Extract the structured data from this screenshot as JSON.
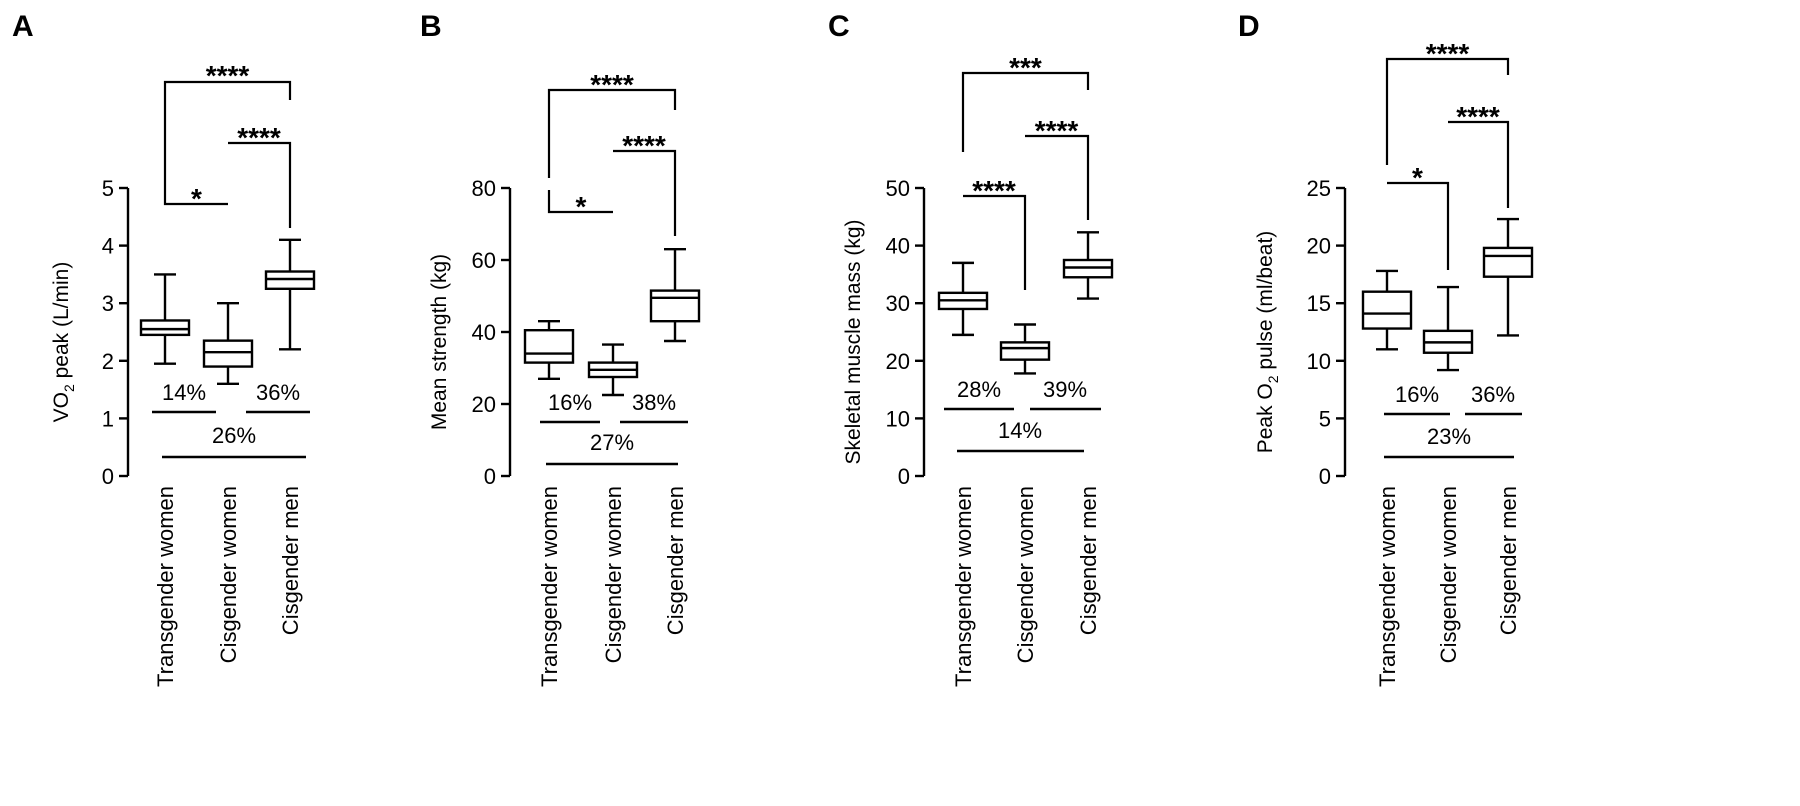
{
  "chart_data": [
    {
      "panel": "A",
      "type": "box",
      "ylabel": "VO",
      "ylabel_sub": "2",
      "ylabel_tail": " peak (L/min)",
      "ylim": [
        0,
        5
      ],
      "yticks": [
        0,
        1,
        2,
        3,
        4,
        5
      ],
      "categories": [
        "Transgender women",
        "Cisgender women",
        "Cisgender men"
      ],
      "boxes": [
        {
          "min": 1.95,
          "q1": 2.45,
          "median": 2.55,
          "q3": 2.7,
          "max": 3.5
        },
        {
          "min": 1.6,
          "q1": 1.9,
          "median": 2.15,
          "q3": 2.35,
          "max": 3.0
        },
        {
          "min": 2.2,
          "q1": 3.25,
          "median": 3.42,
          "q3": 3.55,
          "max": 4.1
        }
      ],
      "brackets": [
        {
          "from": 0,
          "to": 1,
          "label": "*"
        },
        {
          "from": 1,
          "to": 2,
          "label": "****"
        },
        {
          "from": 0,
          "to": 2,
          "label": "****"
        }
      ],
      "percent_lines": [
        {
          "label": "14%"
        },
        {
          "label": "36%"
        },
        {
          "label": "26%"
        }
      ]
    },
    {
      "panel": "B",
      "type": "box",
      "ylabel": "Mean strength (kg)",
      "ylabel_sub": "",
      "ylabel_tail": "",
      "ylim": [
        0,
        80
      ],
      "yticks": [
        0,
        20,
        40,
        60,
        80
      ],
      "categories": [
        "Transgender women",
        "Cisgender women",
        "Cisgender men"
      ],
      "boxes": [
        {
          "min": 27,
          "q1": 31.5,
          "median": 34,
          "q3": 40.5,
          "max": 43
        },
        {
          "min": 22.5,
          "q1": 27.5,
          "median": 29.5,
          "q3": 31.5,
          "max": 36.5
        },
        {
          "min": 37.5,
          "q1": 43,
          "median": 49.5,
          "q3": 51.5,
          "max": 63
        }
      ],
      "brackets": [
        {
          "from": 0,
          "to": 1,
          "label": "*"
        },
        {
          "from": 1,
          "to": 2,
          "label": "****"
        },
        {
          "from": 0,
          "to": 2,
          "label": "****"
        }
      ],
      "percent_lines": [
        {
          "label": "16%"
        },
        {
          "label": "38%"
        },
        {
          "label": "27%"
        }
      ]
    },
    {
      "panel": "C",
      "type": "box",
      "ylabel": "Skeletal muscle mass (kg)",
      "ylabel_sub": "",
      "ylabel_tail": "",
      "ylim": [
        0,
        50
      ],
      "yticks": [
        0,
        10,
        20,
        30,
        40,
        50
      ],
      "categories": [
        "Transgender women",
        "Cisgender women",
        "Cisgender men"
      ],
      "boxes": [
        {
          "min": 24.5,
          "q1": 29,
          "median": 30.5,
          "q3": 31.8,
          "max": 37
        },
        {
          "min": 17.8,
          "q1": 20.2,
          "median": 22.2,
          "q3": 23.2,
          "max": 26.3
        },
        {
          "min": 30.8,
          "q1": 34.5,
          "median": 36.2,
          "q3": 37.5,
          "max": 42.3
        }
      ],
      "brackets": [
        {
          "from": 0,
          "to": 1,
          "label": "****"
        },
        {
          "from": 1,
          "to": 2,
          "label": "****"
        },
        {
          "from": 0,
          "to": 2,
          "label": "***"
        }
      ],
      "percent_lines": [
        {
          "label": "28%"
        },
        {
          "label": "39%"
        },
        {
          "label": "14%"
        }
      ]
    },
    {
      "panel": "D",
      "type": "box",
      "ylabel": "Peak O",
      "ylabel_sub": "2",
      "ylabel_tail": " pulse (ml/beat)",
      "ylim": [
        0,
        25
      ],
      "yticks": [
        0,
        5,
        10,
        15,
        20,
        25
      ],
      "categories": [
        "Transgender women",
        "Cisgender women",
        "Cisgender men"
      ],
      "boxes": [
        {
          "min": 11,
          "q1": 12.8,
          "median": 14.1,
          "q3": 16,
          "max": 17.8
        },
        {
          "min": 9.2,
          "q1": 10.7,
          "median": 11.6,
          "q3": 12.6,
          "max": 16.4
        },
        {
          "min": 12.2,
          "q1": 17.3,
          "median": 19.1,
          "q3": 19.8,
          "max": 22.3
        }
      ],
      "brackets": [
        {
          "from": 0,
          "to": 1,
          "label": "*"
        },
        {
          "from": 1,
          "to": 2,
          "label": "****"
        },
        {
          "from": 0,
          "to": 2,
          "label": "****"
        }
      ],
      "percent_lines": [
        {
          "label": "16%"
        },
        {
          "label": "36%"
        },
        {
          "label": "23%"
        }
      ]
    }
  ]
}
